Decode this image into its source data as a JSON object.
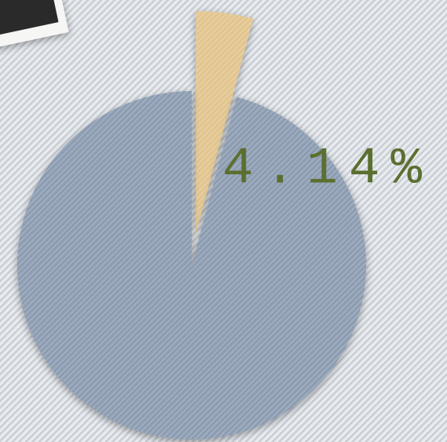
{
  "chart_data": {
    "type": "pie",
    "values": [
      4.14,
      95.86
    ],
    "value_labels": [
      "4.14%",
      null
    ],
    "colors": [
      "#e2c58e",
      "#8c9cb1"
    ]
  }
}
